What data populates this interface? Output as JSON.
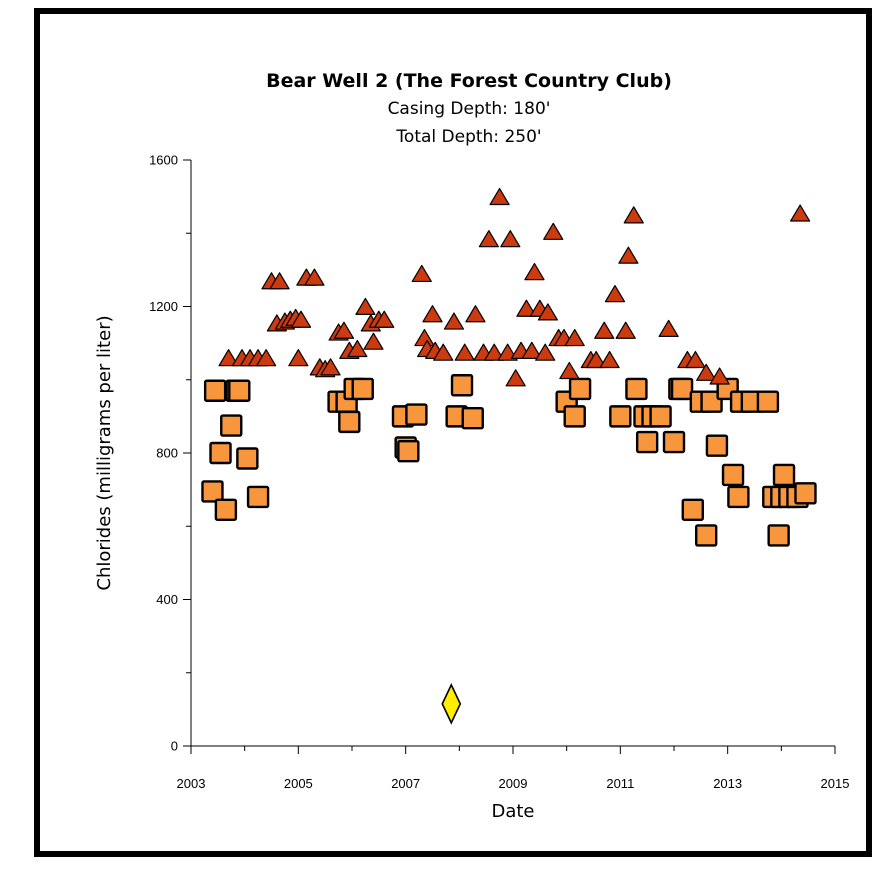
{
  "chart_data": {
    "type": "scatter",
    "title": "Bear Well 2 (The Forest Country Club)",
    "subtitle_lines": [
      "Casing Depth:  180'",
      "Total Depth:  250'"
    ],
    "xlabel": "Date",
    "ylabel": "Chlorides (milligrams per liter)",
    "xlim": [
      2003,
      2015
    ],
    "ylim": [
      0,
      1600
    ],
    "xticks": [
      "2003",
      "2005",
      "2007",
      "2009",
      "2011",
      "2013",
      "2015"
    ],
    "yticks": [
      "0",
      "400",
      "800",
      "1200",
      "1600"
    ],
    "grid": false,
    "legend": "none",
    "series": [
      {
        "marker": "triangle",
        "color": "#cc3a10",
        "points": [
          [
            2003.7,
            1055
          ],
          [
            2003.95,
            1055
          ],
          [
            2004.1,
            1055
          ],
          [
            2004.25,
            1055
          ],
          [
            2004.4,
            1055
          ],
          [
            2004.5,
            1265
          ],
          [
            2004.65,
            1265
          ],
          [
            2004.6,
            1150
          ],
          [
            2004.75,
            1155
          ],
          [
            2004.85,
            1160
          ],
          [
            2004.95,
            1165
          ],
          [
            2005.05,
            1160
          ],
          [
            2005.0,
            1055
          ],
          [
            2005.15,
            1275
          ],
          [
            2005.3,
            1275
          ],
          [
            2005.4,
            1030
          ],
          [
            2005.5,
            1025
          ],
          [
            2005.6,
            1030
          ],
          [
            2005.75,
            1125
          ],
          [
            2005.85,
            1130
          ],
          [
            2005.95,
            1075
          ],
          [
            2006.1,
            1080
          ],
          [
            2006.25,
            1195
          ],
          [
            2006.35,
            1150
          ],
          [
            2006.4,
            1100
          ],
          [
            2006.5,
            1160
          ],
          [
            2006.6,
            1160
          ],
          [
            2007.3,
            1285
          ],
          [
            2007.35,
            1110
          ],
          [
            2007.4,
            1080
          ],
          [
            2007.5,
            1175
          ],
          [
            2007.55,
            1075
          ],
          [
            2007.7,
            1070
          ],
          [
            2007.9,
            1155
          ],
          [
            2008.1,
            1070
          ],
          [
            2008.3,
            1175
          ],
          [
            2008.45,
            1070
          ],
          [
            2008.55,
            1380
          ],
          [
            2008.65,
            1070
          ],
          [
            2008.75,
            1495
          ],
          [
            2008.9,
            1070
          ],
          [
            2008.95,
            1380
          ],
          [
            2009.05,
            1000
          ],
          [
            2009.15,
            1075
          ],
          [
            2009.25,
            1190
          ],
          [
            2009.35,
            1075
          ],
          [
            2009.4,
            1290
          ],
          [
            2009.5,
            1190
          ],
          [
            2009.6,
            1070
          ],
          [
            2009.65,
            1180
          ],
          [
            2009.75,
            1400
          ],
          [
            2009.85,
            1110
          ],
          [
            2009.95,
            1110
          ],
          [
            2010.05,
            1020
          ],
          [
            2010.15,
            1110
          ],
          [
            2010.45,
            1050
          ],
          [
            2010.55,
            1050
          ],
          [
            2010.7,
            1130
          ],
          [
            2010.8,
            1050
          ],
          [
            2010.9,
            1230
          ],
          [
            2011.1,
            1130
          ],
          [
            2011.15,
            1335
          ],
          [
            2011.25,
            1445
          ],
          [
            2011.9,
            1135
          ],
          [
            2012.25,
            1050
          ],
          [
            2012.4,
            1050
          ],
          [
            2012.6,
            1015
          ],
          [
            2012.85,
            1005
          ],
          [
            2014.35,
            1450
          ]
        ]
      },
      {
        "marker": "square",
        "color": "#f7963c",
        "points": [
          [
            2003.4,
            695
          ],
          [
            2003.45,
            970
          ],
          [
            2003.55,
            800
          ],
          [
            2003.65,
            645
          ],
          [
            2003.75,
            875
          ],
          [
            2003.85,
            970
          ],
          [
            2003.9,
            970
          ],
          [
            2004.05,
            785
          ],
          [
            2004.25,
            680
          ],
          [
            2005.75,
            940
          ],
          [
            2005.9,
            940
          ],
          [
            2005.95,
            885
          ],
          [
            2006.05,
            975
          ],
          [
            2006.2,
            975
          ],
          [
            2006.95,
            900
          ],
          [
            2007.0,
            815
          ],
          [
            2007.05,
            805
          ],
          [
            2007.2,
            905
          ],
          [
            2007.95,
            900
          ],
          [
            2008.05,
            985
          ],
          [
            2008.25,
            895
          ],
          [
            2010.0,
            940
          ],
          [
            2010.15,
            900
          ],
          [
            2010.25,
            975
          ],
          [
            2011.0,
            900
          ],
          [
            2011.3,
            975
          ],
          [
            2011.45,
            900
          ],
          [
            2011.5,
            830
          ],
          [
            2011.6,
            900
          ],
          [
            2011.75,
            900
          ],
          [
            2012.0,
            830
          ],
          [
            2012.1,
            975
          ],
          [
            2012.15,
            975
          ],
          [
            2012.35,
            645
          ],
          [
            2012.5,
            940
          ],
          [
            2012.6,
            575
          ],
          [
            2012.7,
            940
          ],
          [
            2012.8,
            820
          ],
          [
            2013.0,
            975
          ],
          [
            2013.1,
            740
          ],
          [
            2013.2,
            680
          ],
          [
            2013.25,
            940
          ],
          [
            2013.45,
            940
          ],
          [
            2013.75,
            940
          ],
          [
            2013.85,
            680
          ],
          [
            2013.95,
            575
          ],
          [
            2014.0,
            680
          ],
          [
            2014.05,
            740
          ],
          [
            2014.15,
            680
          ],
          [
            2014.3,
            680
          ],
          [
            2014.45,
            690
          ]
        ]
      },
      {
        "marker": "diamond",
        "color": "#ffee00",
        "points": [
          [
            2007.85,
            115
          ]
        ]
      }
    ]
  }
}
